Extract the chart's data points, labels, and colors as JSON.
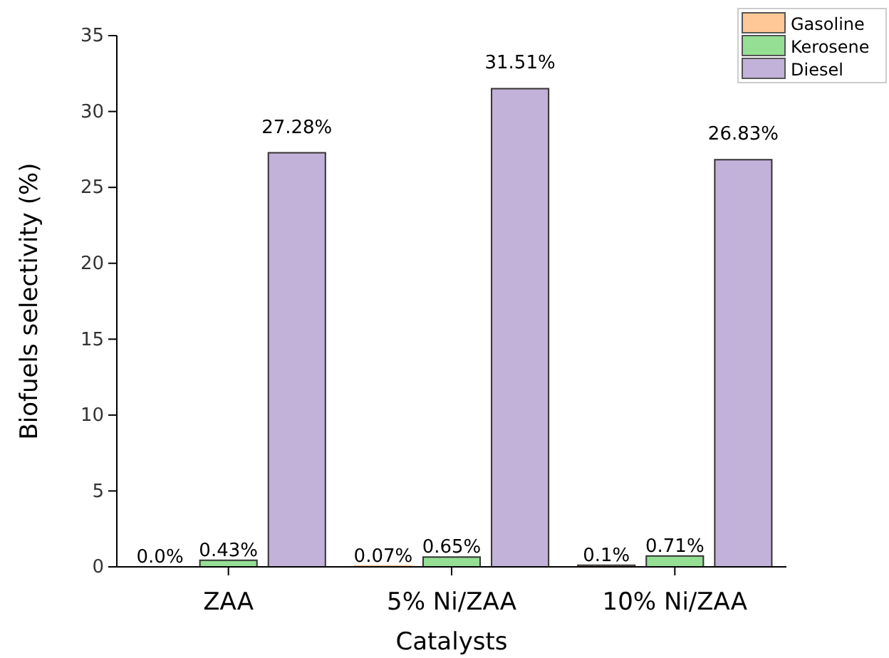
{
  "chart_data": {
    "type": "bar",
    "xlabel": "Catalysts",
    "ylabel": "Biofuels selectivity (%)",
    "categories": [
      "ZAA",
      "5% Ni/ZAA",
      "10% Ni/ZAA"
    ],
    "series": [
      {
        "name": "Gasoline",
        "color": "#ffc896",
        "values": [
          0.0,
          0.07,
          0.1
        ],
        "value_labels": [
          "0.0%",
          "0.07%",
          "0.1%"
        ]
      },
      {
        "name": "Kerosene",
        "color": "#94df94",
        "values": [
          0.43,
          0.65,
          0.71
        ],
        "value_labels": [
          "0.43%",
          "0.65%",
          "0.71%"
        ]
      },
      {
        "name": "Diesel",
        "color": "#c2b1d9",
        "values": [
          27.28,
          31.51,
          26.83
        ],
        "value_labels": [
          "27.28%",
          "31.51%",
          "26.83%"
        ]
      }
    ],
    "ylim": [
      0,
      35
    ],
    "yticks": [
      0,
      5,
      10,
      15,
      20,
      25,
      30,
      35
    ],
    "grid": false,
    "legend": "top right"
  }
}
